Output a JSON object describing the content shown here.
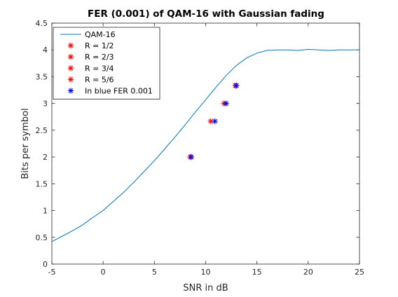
{
  "chart_data": {
    "type": "line",
    "title": "FER (0.001) of QAM-16 with Gaussian fading",
    "xlabel": "SNR in dB",
    "ylabel": "Bits per symbol",
    "xlim": [
      -5,
      25
    ],
    "ylim": [
      0,
      4.5
    ],
    "xticks": [
      -5,
      0,
      5,
      10,
      15,
      20,
      25
    ],
    "yticks": [
      0,
      0.5,
      1,
      1.5,
      2,
      2.5,
      3,
      3.5,
      4,
      4.5
    ],
    "grid": false,
    "legend_position": "top-left",
    "series": [
      {
        "name": "QAM-16",
        "kind": "line",
        "color": "#0072BD",
        "x": [
          -5,
          -4,
          -3,
          -2,
          -1,
          0,
          1,
          2,
          3,
          4,
          5,
          6,
          7,
          8,
          9,
          10,
          11,
          12,
          13,
          14,
          15,
          16,
          17,
          18,
          19,
          20,
          21,
          22,
          23,
          24,
          25
        ],
        "y": [
          0.42,
          0.52,
          0.62,
          0.73,
          0.87,
          1.0,
          1.17,
          1.34,
          1.53,
          1.73,
          1.93,
          2.15,
          2.37,
          2.6,
          2.84,
          3.07,
          3.3,
          3.52,
          3.71,
          3.85,
          3.94,
          3.99,
          4.0,
          4.0,
          3.99,
          4.01,
          4.0,
          3.99,
          4.0,
          4.0,
          4.0
        ]
      },
      {
        "name": "R = 1/2",
        "kind": "marker",
        "color": "#FF0000",
        "x": [
          8.5
        ],
        "y": [
          2.0
        ]
      },
      {
        "name": "R = 2/3",
        "kind": "marker",
        "color": "#FF0000",
        "x": [
          10.5
        ],
        "y": [
          2.667
        ]
      },
      {
        "name": "R = 3/4",
        "kind": "marker",
        "color": "#FF0000",
        "x": [
          11.8
        ],
        "y": [
          3.0
        ]
      },
      {
        "name": "R = 5/6",
        "kind": "marker",
        "color": "#FF0000",
        "x": [
          12.9
        ],
        "y": [
          3.333
        ]
      },
      {
        "name": "In blue FER 0.001",
        "kind": "marker",
        "color": "#0000FF",
        "x": [
          8.6,
          10.9,
          12.0,
          13.0
        ],
        "y": [
          2.0,
          2.667,
          3.0,
          3.333
        ]
      }
    ]
  }
}
